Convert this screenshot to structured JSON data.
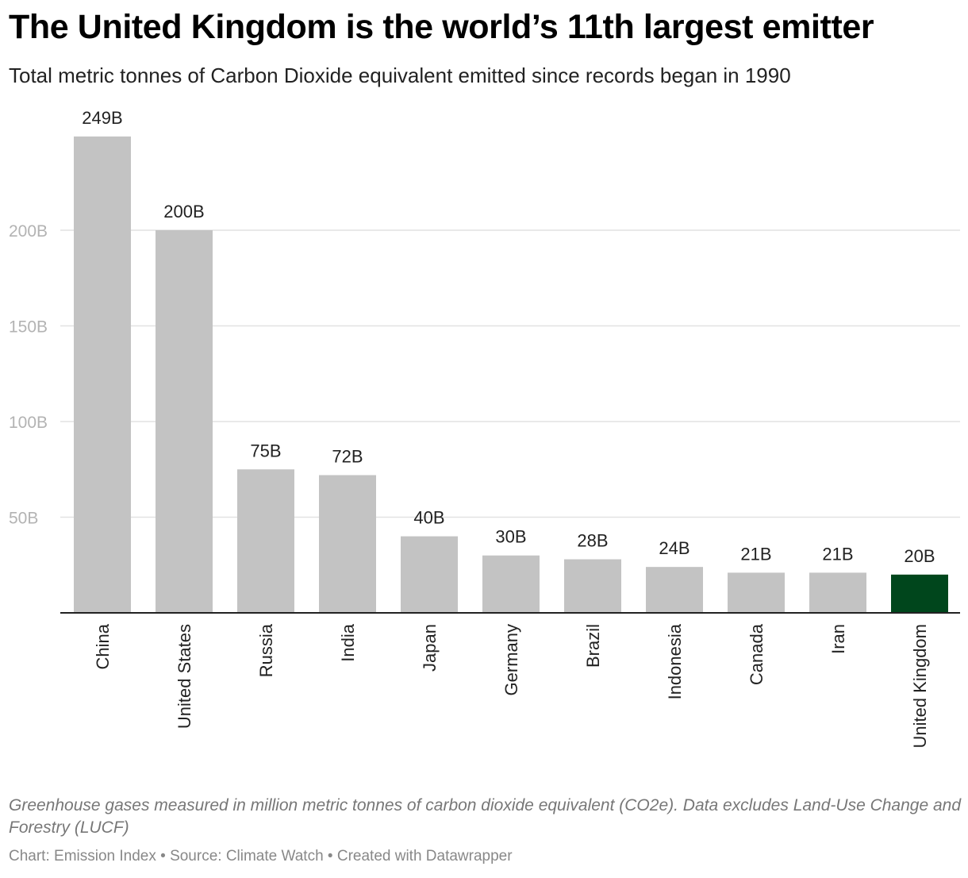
{
  "title": "The United Kingdom is the world’s 11th largest emitter",
  "subtitle": "Total metric tonnes of Carbon Dioxide equivalent emitted since records began in 1990",
  "notes": "Greenhouse gases measured in million metric tonnes of carbon dioxide equivalent (CO2e). Data excludes Land-Use Change and Forestry (LUCF)",
  "credits": "Chart: Emission Index • Source: Climate Watch • Created with Datawrapper",
  "colors": {
    "bar": "#c3c3c3",
    "highlight": "#00461c",
    "grid": "#e2e2e2",
    "axis": "#222222"
  },
  "chart_data": {
    "type": "bar",
    "categories": [
      "China",
      "United States",
      "Russia",
      "India",
      "Japan",
      "Germany",
      "Brazil",
      "Indonesia",
      "Canada",
      "Iran",
      "United Kingdom"
    ],
    "values": [
      249,
      200,
      75,
      72,
      40,
      30,
      28,
      24,
      21,
      21,
      20
    ],
    "value_labels": [
      "249B",
      "200B",
      "75B",
      "72B",
      "40B",
      "30B",
      "28B",
      "24B",
      "21B",
      "21B",
      "20B"
    ],
    "unit": "billion tonnes CO2e",
    "highlight": "United Kingdom",
    "yticks": [
      50,
      100,
      150,
      200
    ],
    "ytick_labels": [
      "50B",
      "100B",
      "150B",
      "200B"
    ],
    "ylim": [
      0,
      249
    ],
    "grid": true,
    "xlabel_orientation": "vertical"
  }
}
